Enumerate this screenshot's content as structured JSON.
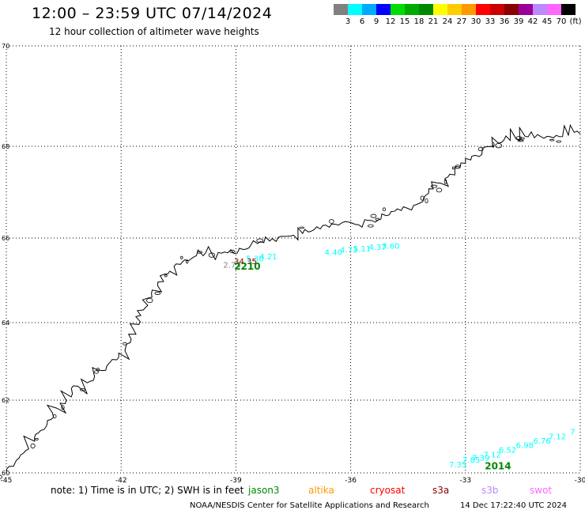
{
  "header": {
    "title": "12:00 – 23:59 UTC 07/14/2024",
    "subtitle": "12 hour collection of altimeter wave heights"
  },
  "colorbar": {
    "colors": [
      "#808080",
      "#00ffff",
      "#00aaff",
      "#0000ff",
      "#00dd00",
      "#00aa00",
      "#008800",
      "#ffff00",
      "#ffcc00",
      "#ff9900",
      "#ff0000",
      "#cc0000",
      "#880000",
      "#990099",
      "#bb88ff",
      "#ff66ff",
      "#000000"
    ],
    "labels": [
      "3",
      "6",
      "9",
      "12",
      "15",
      "18",
      "21",
      "24",
      "27",
      "30",
      "33",
      "36",
      "39",
      "42",
      "45",
      "70",
      "(ft)"
    ]
  },
  "map": {
    "lon_ticks": [
      "-45",
      "-42",
      "-39",
      "-36",
      "-33",
      "-30"
    ],
    "lat_ticks": [
      "70",
      "68",
      "66",
      "64",
      "62",
      "60"
    ],
    "tracks": [
      {
        "color": "#00ffff",
        "points": [
          {
            "lon": -38.5,
            "lat": 65.45,
            "value": "5.30"
          },
          {
            "lon": -38.15,
            "lat": 65.5,
            "value": "4.21"
          },
          {
            "lon": -36.45,
            "lat": 65.6,
            "value": "4.40"
          },
          {
            "lon": -36.05,
            "lat": 65.65,
            "value": "4.73"
          },
          {
            "lon": -35.7,
            "lat": 65.68,
            "value": "5.11"
          },
          {
            "lon": -35.3,
            "lat": 65.72,
            "value": "4.37"
          },
          {
            "lon": -34.95,
            "lat": 65.75,
            "value": "3.60"
          }
        ]
      },
      {
        "color": "#00ffff",
        "points": [
          {
            "lon": -33.2,
            "lat": 60.15,
            "value": "7.35"
          },
          {
            "lon": -32.85,
            "lat": 60.28,
            "value": "7.85"
          },
          {
            "lon": -32.6,
            "lat": 60.34,
            "value": "7.39"
          },
          {
            "lon": -32.3,
            "lat": 60.42,
            "value": "7.12"
          },
          {
            "lon": -31.9,
            "lat": 60.55,
            "value": "6.52"
          },
          {
            "lon": -31.45,
            "lat": 60.68,
            "value": "6.98"
          },
          {
            "lon": -31.0,
            "lat": 60.8,
            "value": "6.76"
          },
          {
            "lon": -30.6,
            "lat": 60.92,
            "value": "7.12"
          },
          {
            "lon": -30.2,
            "lat": 61.05,
            "value": "7"
          }
        ]
      }
    ],
    "extra_points": [
      {
        "lon": -39.1,
        "lat": 65.3,
        "value": "2.73",
        "color": "#808080"
      },
      {
        "lon": -38.75,
        "lat": 65.38,
        "value": "34.35",
        "color": "#880000"
      }
    ],
    "track_ids": [
      {
        "lon": -38.7,
        "lat": 65.25,
        "text": "2210",
        "color": "#008800"
      },
      {
        "lon": -32.15,
        "lat": 60.1,
        "text": "2014",
        "color": "#008800"
      }
    ]
  },
  "legend": {
    "note": "note:  1) Time is in UTC;  2) SWH is in feet",
    "satellites": [
      {
        "name": "jason3",
        "color": "#008800"
      },
      {
        "name": "altika",
        "color": "#ff9900"
      },
      {
        "name": "cryosat",
        "color": "#ff0000"
      },
      {
        "name": "s3a",
        "color": "#880000"
      },
      {
        "name": "s3b",
        "color": "#bb88ff"
      },
      {
        "name": "swot",
        "color": "#ff66ff"
      }
    ]
  },
  "footer": {
    "credit": "NOAA/NESDIS Center for Satellite Applications and Research",
    "timestamp": "14 Dec 17:22:40 UTC 2024"
  }
}
